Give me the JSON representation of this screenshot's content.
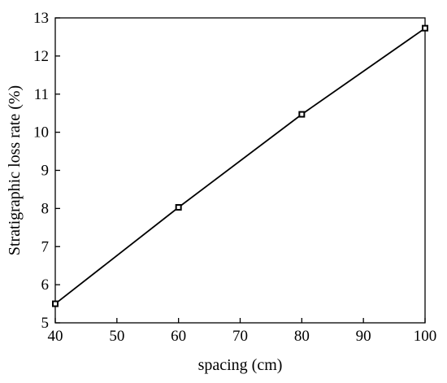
{
  "chart_data": {
    "type": "line",
    "x": [
      40,
      60,
      80,
      100
    ],
    "series": [
      {
        "values": [
          5.5,
          8.03,
          10.47,
          12.73
        ]
      }
    ],
    "xlabel": "spacing (cm)",
    "ylabel": "Stratigraphic loss rate (%)",
    "xlim": [
      40,
      100
    ],
    "ylim": [
      5,
      13
    ],
    "xticks": [
      "40",
      "50",
      "60",
      "70",
      "80",
      "90",
      "100"
    ],
    "yticks": [
      "5",
      "6",
      "7",
      "8",
      "9",
      "10",
      "11",
      "12",
      "13"
    ],
    "grid": false,
    "marker": "open-square",
    "color": "#000000"
  }
}
